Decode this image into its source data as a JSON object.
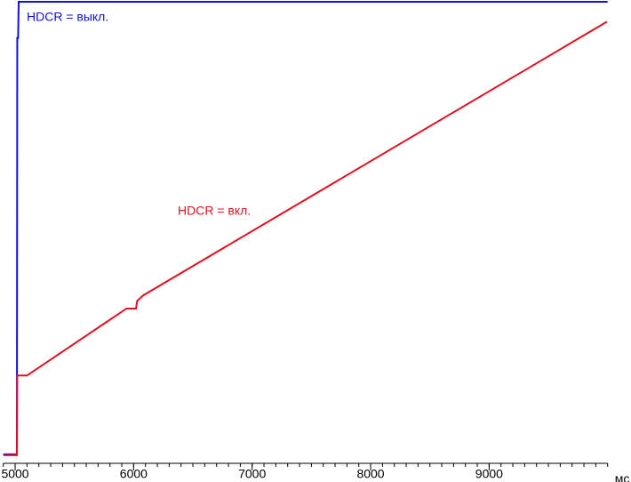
{
  "chart_data": {
    "type": "line",
    "xlabel": "мс",
    "xlim": [
      4900,
      10000
    ],
    "ylim": [
      -2,
      100
    ],
    "xticks": [
      5000,
      6000,
      7000,
      8000,
      9000
    ],
    "xticks_minor": [
      4900,
      5000,
      5100,
      5200,
      5300,
      5400,
      5500,
      5600,
      5700,
      5800,
      5900,
      6000,
      6100,
      6200,
      6300,
      6400,
      6500,
      6600,
      6700,
      6800,
      6900,
      7000,
      7100,
      7200,
      7300,
      7400,
      7500,
      7600,
      7700,
      7800,
      7900,
      8000,
      8100,
      8200,
      8300,
      8400,
      8500,
      8600,
      8700,
      8800,
      8900,
      9000,
      9100,
      9200,
      9300,
      9400,
      9500,
      9600,
      9700,
      9800,
      9900,
      10000
    ],
    "series": [
      {
        "name": "HDCR = выкл.",
        "color": "#1010e0",
        "x": [
          4900,
          5015,
          5018,
          5025,
          5030,
          10000
        ],
        "values": [
          0,
          0,
          92,
          92,
          100,
          100
        ]
      },
      {
        "name": "HDCR = вкл.",
        "color": "#e01020",
        "x": [
          4900,
          5015,
          5018,
          5100,
          5940,
          6020,
          6030,
          6080,
          9995
        ],
        "values": [
          -0.2,
          -0.2,
          17.4,
          17.4,
          32.2,
          32.2,
          33.9,
          35.1,
          95.6
        ]
      }
    ]
  }
}
